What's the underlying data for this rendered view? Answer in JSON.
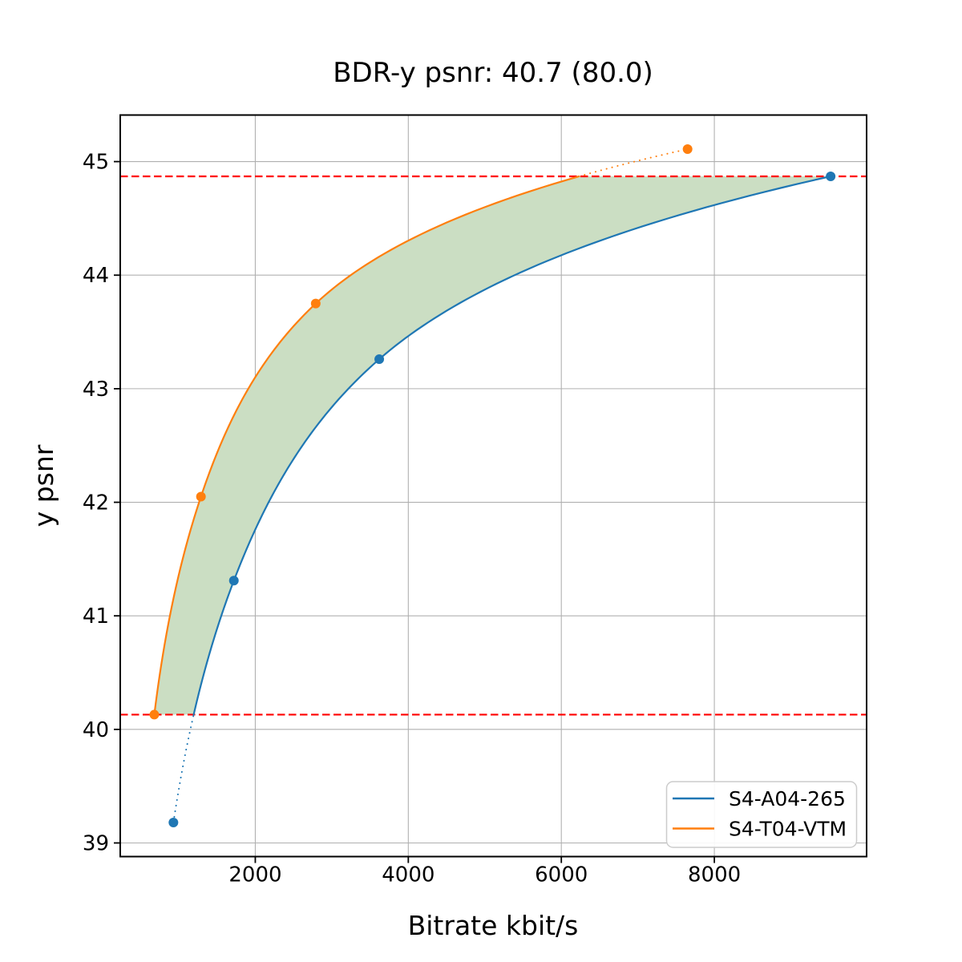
{
  "title": "BDR-y psnr: 40.7 (80.0)",
  "chart_data": {
    "type": "line",
    "title": "BDR-y psnr: 40.7 (80.0)",
    "xlabel": "Bitrate kbit/s",
    "ylabel": "y psnr",
    "xlim": [
      235,
      9990
    ],
    "ylim": [
      38.88,
      45.41
    ],
    "xticks": [
      2000,
      4000,
      6000,
      8000
    ],
    "yticks": [
      39,
      40,
      41,
      42,
      43,
      44,
      45
    ],
    "grid": true,
    "legend_position": "lower right",
    "series": [
      {
        "name": "S4-A04-265",
        "color": "#1f77b4",
        "marker": "circle",
        "x": [
          930,
          1720,
          3620,
          9520
        ],
        "y": [
          39.18,
          41.31,
          43.26,
          44.87
        ]
      },
      {
        "name": "S4-T04-VTM",
        "color": "#ff7f0e",
        "marker": "circle",
        "x": [
          680,
          1290,
          2790,
          7650
        ],
        "y": [
          40.13,
          42.05,
          43.75,
          45.11
        ]
      }
    ],
    "overlap_band": {
      "psnr_min": 40.13,
      "psnr_max": 44.87,
      "fill_color": "#cbdec3"
    },
    "reference_lines": [
      {
        "axis": "y",
        "value": 44.87,
        "color": "#ff0000",
        "style": "dashed"
      },
      {
        "axis": "y",
        "value": 40.13,
        "color": "#ff0000",
        "style": "dashed"
      }
    ]
  },
  "legend": {
    "entries": [
      {
        "label": "S4-A04-265",
        "color": "#1f77b4"
      },
      {
        "label": "S4-T04-VTM",
        "color": "#ff7f0e"
      }
    ]
  },
  "colors": {
    "background": "#ffffff",
    "grid": "#b0b0b0",
    "spine": "#000000"
  }
}
